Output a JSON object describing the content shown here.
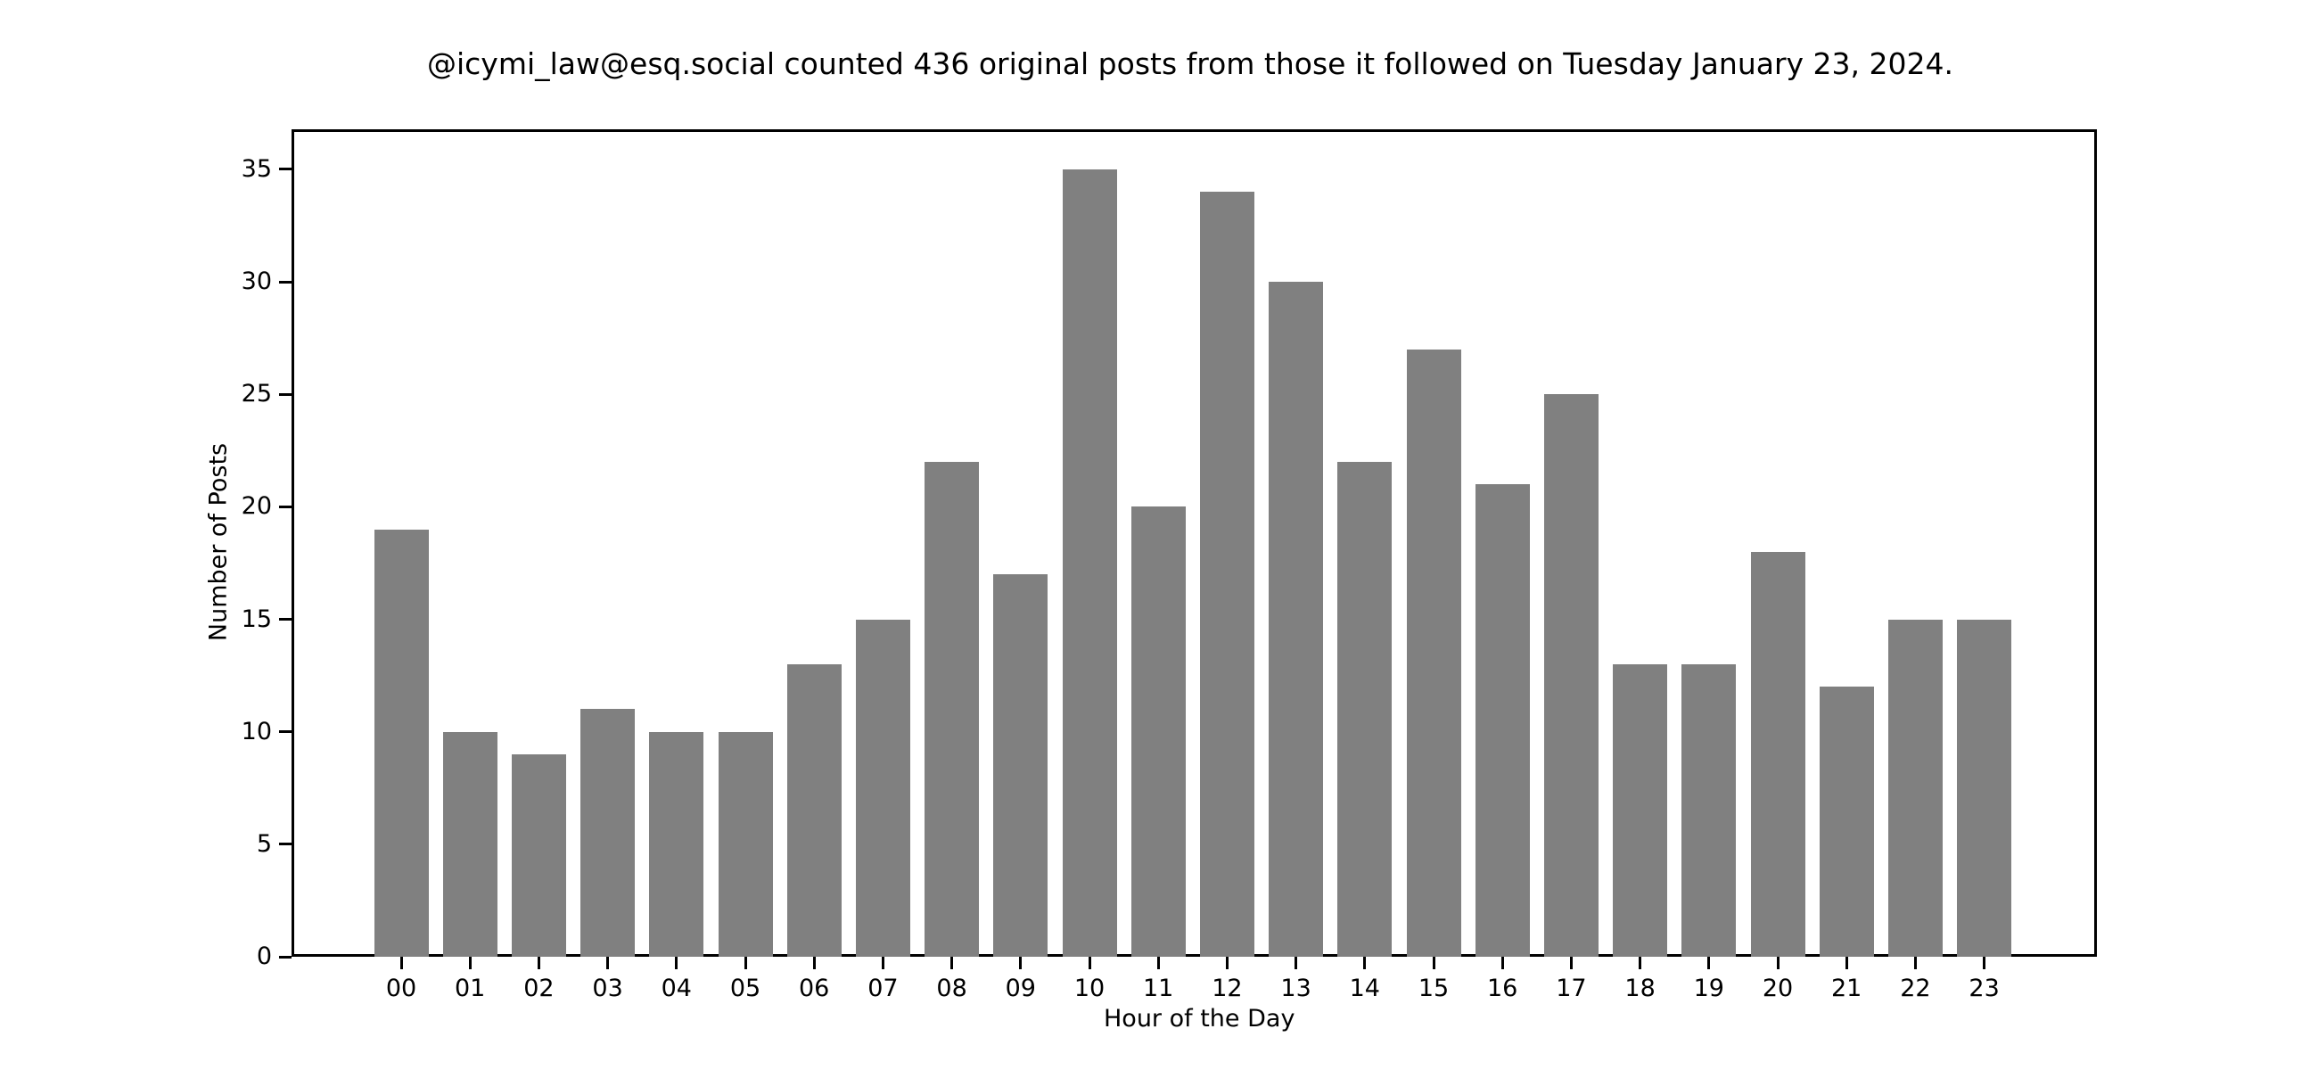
{
  "chart_data": {
    "type": "bar",
    "title": "@icymi_law@esq.social counted 436 original posts from those it followed on Tuesday January 23, 2024.",
    "xlabel": "Hour of the Day",
    "ylabel": "Number of Posts",
    "categories": [
      "00",
      "01",
      "02",
      "03",
      "04",
      "05",
      "06",
      "07",
      "08",
      "09",
      "10",
      "11",
      "12",
      "13",
      "14",
      "15",
      "16",
      "17",
      "18",
      "19",
      "20",
      "21",
      "22",
      "23"
    ],
    "values": [
      19,
      10,
      9,
      11,
      10,
      10,
      13,
      15,
      22,
      17,
      35,
      20,
      34,
      30,
      22,
      27,
      21,
      25,
      13,
      13,
      18,
      12,
      15,
      15
    ],
    "yticks": [
      0,
      5,
      10,
      15,
      20,
      25,
      30,
      35
    ],
    "ylim": [
      0,
      36.75
    ],
    "grid": false,
    "legend": null,
    "bar_color": "#808080"
  }
}
